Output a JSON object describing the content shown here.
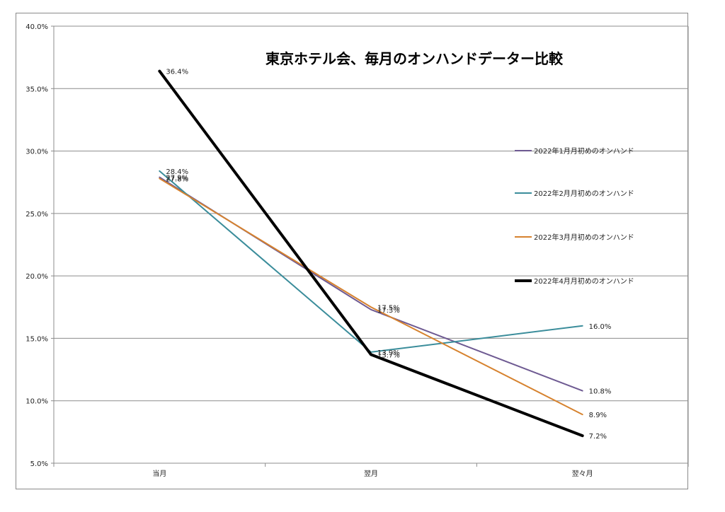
{
  "chart_data": {
    "type": "line",
    "title": "東京ホテル会、毎月のオンハンドデーター比較",
    "xlabel": "",
    "ylabel": "",
    "categories": [
      "当月",
      "翌月",
      "翌々月"
    ],
    "ylim": [
      0.05,
      0.4
    ],
    "yticks": [
      "5.0%",
      "10.0%",
      "15.0%",
      "20.0%",
      "25.0%",
      "30.0%",
      "35.0%",
      "40.0%"
    ],
    "grid": true,
    "legend_position": "right",
    "series": [
      {
        "name": "2022年1月月初めのオンハンド",
        "color": "#6e5a92",
        "width": 2,
        "values": [
          0.279,
          0.173,
          0.108
        ],
        "labels": [
          "27.9%",
          "17.3%",
          "10.8%"
        ]
      },
      {
        "name": "2022年2月月初めのオンハンド",
        "color": "#3b8d9b",
        "width": 2,
        "values": [
          0.284,
          0.139,
          0.16
        ],
        "labels": [
          "28.4%",
          "13.9%",
          "16.0%"
        ]
      },
      {
        "name": "2022年3月月初めのオンハンド",
        "color": "#d6822e",
        "width": 2,
        "values": [
          0.278,
          0.175,
          0.089
        ],
        "labels": [
          "27.8%",
          "17.5%",
          "8.9%"
        ]
      },
      {
        "name": "2022年4月月初めのオンハンド",
        "color": "#000000",
        "width": 4,
        "values": [
          0.364,
          0.137,
          0.072
        ],
        "labels": [
          "36.4%",
          "13.7%",
          "7.2%"
        ]
      }
    ]
  }
}
